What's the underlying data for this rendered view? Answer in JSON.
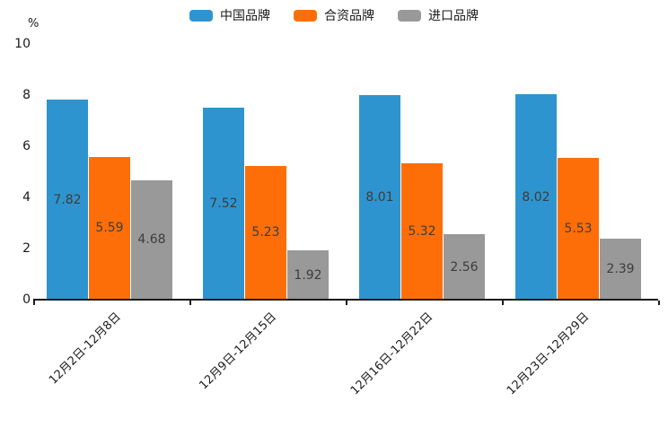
{
  "chart_data": {
    "type": "bar",
    "title": "",
    "xlabel": "",
    "ylabel": "%",
    "categories": [
      "12月2日-12月8日",
      "12月9日-12月15日",
      "12月16日-12月22日",
      "12月23日-12月29日"
    ],
    "series": [
      {
        "name": "中国品牌",
        "color": "#2E94CF",
        "values": [
          7.82,
          7.52,
          8.01,
          8.02
        ]
      },
      {
        "name": "合资品牌",
        "color": "#FD6E08",
        "values": [
          5.59,
          5.23,
          5.32,
          5.53
        ]
      },
      {
        "name": "进口品牌",
        "color": "#999999",
        "values": [
          4.68,
          1.92,
          2.56,
          2.39
        ]
      }
    ],
    "ylim": [
      0,
      10
    ],
    "yticks": [
      0,
      2,
      4,
      6,
      8,
      10
    ],
    "grid": false,
    "legend_position": "top",
    "value_labels": "centered-inside-bars",
    "axis_color": "#1a1a1a"
  }
}
